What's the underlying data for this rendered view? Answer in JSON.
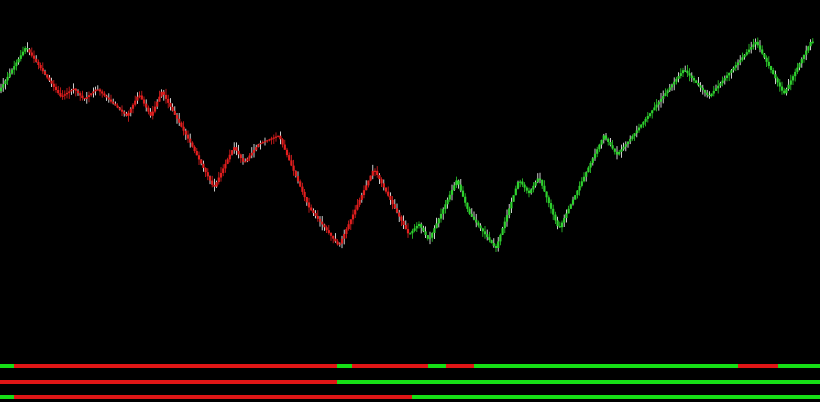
{
  "colors": {
    "background": "#000000",
    "bull": "#2ed12e",
    "bear": "#e41e1e",
    "wick": "#ffffff",
    "strip_bull": "#16e016",
    "strip_bear": "#e01616"
  },
  "chart_data": {
    "type": "line",
    "title": "",
    "xlabel": "",
    "ylabel": "",
    "grid": false,
    "legend": "none",
    "x_range": [
      0,
      820
    ],
    "y_range": [
      0,
      100
    ],
    "series": [
      {
        "role": "price",
        "points": [
          [
            0,
            72
          ],
          [
            27,
            88
          ],
          [
            62,
            70
          ],
          [
            75,
            73
          ],
          [
            85,
            69
          ],
          [
            98,
            73
          ],
          [
            128,
            63
          ],
          [
            140,
            71
          ],
          [
            152,
            63
          ],
          [
            163,
            72
          ],
          [
            192,
            53
          ],
          [
            215,
            37
          ],
          [
            235,
            52
          ],
          [
            245,
            46
          ],
          [
            260,
            53
          ],
          [
            280,
            56
          ],
          [
            310,
            30
          ],
          [
            340,
            16
          ],
          [
            375,
            44
          ],
          [
            410,
            20
          ],
          [
            420,
            24
          ],
          [
            430,
            18
          ],
          [
            458,
            40
          ],
          [
            470,
            28
          ],
          [
            497,
            15
          ],
          [
            520,
            40
          ],
          [
            530,
            35
          ],
          [
            540,
            41
          ],
          [
            560,
            22
          ],
          [
            605,
            56
          ],
          [
            618,
            49
          ],
          [
            632,
            55
          ],
          [
            685,
            80
          ],
          [
            710,
            70
          ],
          [
            757,
            90
          ],
          [
            785,
            71
          ],
          [
            812,
            90
          ]
        ],
        "trend_segments": [
          {
            "x_end": 27,
            "trend": "bull"
          },
          {
            "x_end": 408,
            "trend": "bear"
          },
          {
            "x_end": 812,
            "trend": "bull"
          }
        ]
      }
    ],
    "signal_strips": [
      {
        "name": "",
        "segments": [
          {
            "from": 0,
            "to": 14,
            "trend": "bull"
          },
          {
            "from": 14,
            "to": 337,
            "trend": "bear"
          },
          {
            "from": 337,
            "to": 352,
            "trend": "bull"
          },
          {
            "from": 352,
            "to": 428,
            "trend": "bear"
          },
          {
            "from": 428,
            "to": 446,
            "trend": "bull"
          },
          {
            "from": 446,
            "to": 474,
            "trend": "bear"
          },
          {
            "from": 474,
            "to": 738,
            "trend": "bull"
          },
          {
            "from": 738,
            "to": 778,
            "trend": "bear"
          },
          {
            "from": 778,
            "to": 820,
            "trend": "bull"
          }
        ]
      },
      {
        "name": "",
        "segments": [
          {
            "from": 0,
            "to": 337,
            "trend": "bear"
          },
          {
            "from": 337,
            "to": 820,
            "trend": "bull"
          }
        ]
      },
      {
        "name": "",
        "segments": [
          {
            "from": 0,
            "to": 14,
            "trend": "bull"
          },
          {
            "from": 14,
            "to": 412,
            "trend": "bear"
          },
          {
            "from": 412,
            "to": 820,
            "trend": "bull"
          }
        ]
      }
    ]
  }
}
